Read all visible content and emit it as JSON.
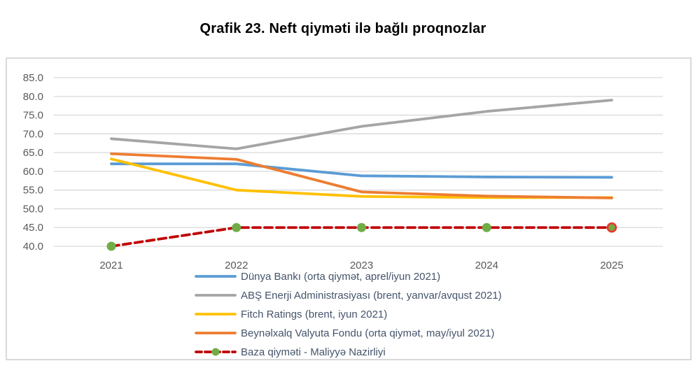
{
  "title": "Qrafik 23. Neft qiyməti ilə bağlı proqnozlar",
  "chart_data": {
    "type": "line",
    "title": "Qrafik 23. Neft qiyməti ilə bağlı proqnozlar",
    "categories": [
      "2021",
      "2022",
      "2023",
      "2024",
      "2025"
    ],
    "series": [
      {
        "name": "Dünya Bankı (orta qiymət, aprel/iyun 2021)",
        "color": "#5B9BD5",
        "style": "solid",
        "values": [
          62.0,
          62.0,
          58.8,
          58.5,
          58.4
        ]
      },
      {
        "name": "ABŞ Enerji Administrasiyası (brent, yanvar/avqust 2021)",
        "color": "#A5A5A5",
        "style": "solid",
        "values": [
          68.7,
          66.0,
          72.0,
          76.0,
          79.0
        ]
      },
      {
        "name": "Fitch Ratings (brent, iyun 2021)",
        "color": "#FFC000",
        "style": "solid",
        "values": [
          63.3,
          55.0,
          53.3,
          53.0,
          53.0
        ]
      },
      {
        "name": "Beynəlxalq Valyuta Fondu (orta qiymət, may/iyul 2021)",
        "color": "#ED7D31",
        "style": "solid",
        "values": [
          64.7,
          63.2,
          54.5,
          53.4,
          52.9
        ]
      },
      {
        "name": "Baza qiyməti - Maliyyə Nazirliyi",
        "color": "#C00000",
        "style": "dashed",
        "marker": {
          "shape": "circle",
          "color": "#70AD47"
        },
        "last_marker_ring_color": "#E8392B",
        "values": [
          40.0,
          45.0,
          45.0,
          45.0,
          45.0
        ]
      }
    ],
    "y_axis": {
      "min": 40,
      "max": 85,
      "step": 5,
      "tick_decimals": 1,
      "tick_labels": [
        "40.0",
        "45.0",
        "50.0",
        "55.0",
        "60.0",
        "65.0",
        "70.0",
        "75.0",
        "80.0",
        "85.0"
      ]
    },
    "x_axis": {
      "label": "",
      "tick_labels": [
        "2021",
        "2022",
        "2023",
        "2024",
        "2025"
      ]
    },
    "ylim": [
      40,
      85
    ],
    "grid": "horizontal",
    "grid_color": "#D9D9D9",
    "axis_text_color": "#595959",
    "legend_text_color": "#44546A",
    "legend_position": "bottom-left"
  }
}
